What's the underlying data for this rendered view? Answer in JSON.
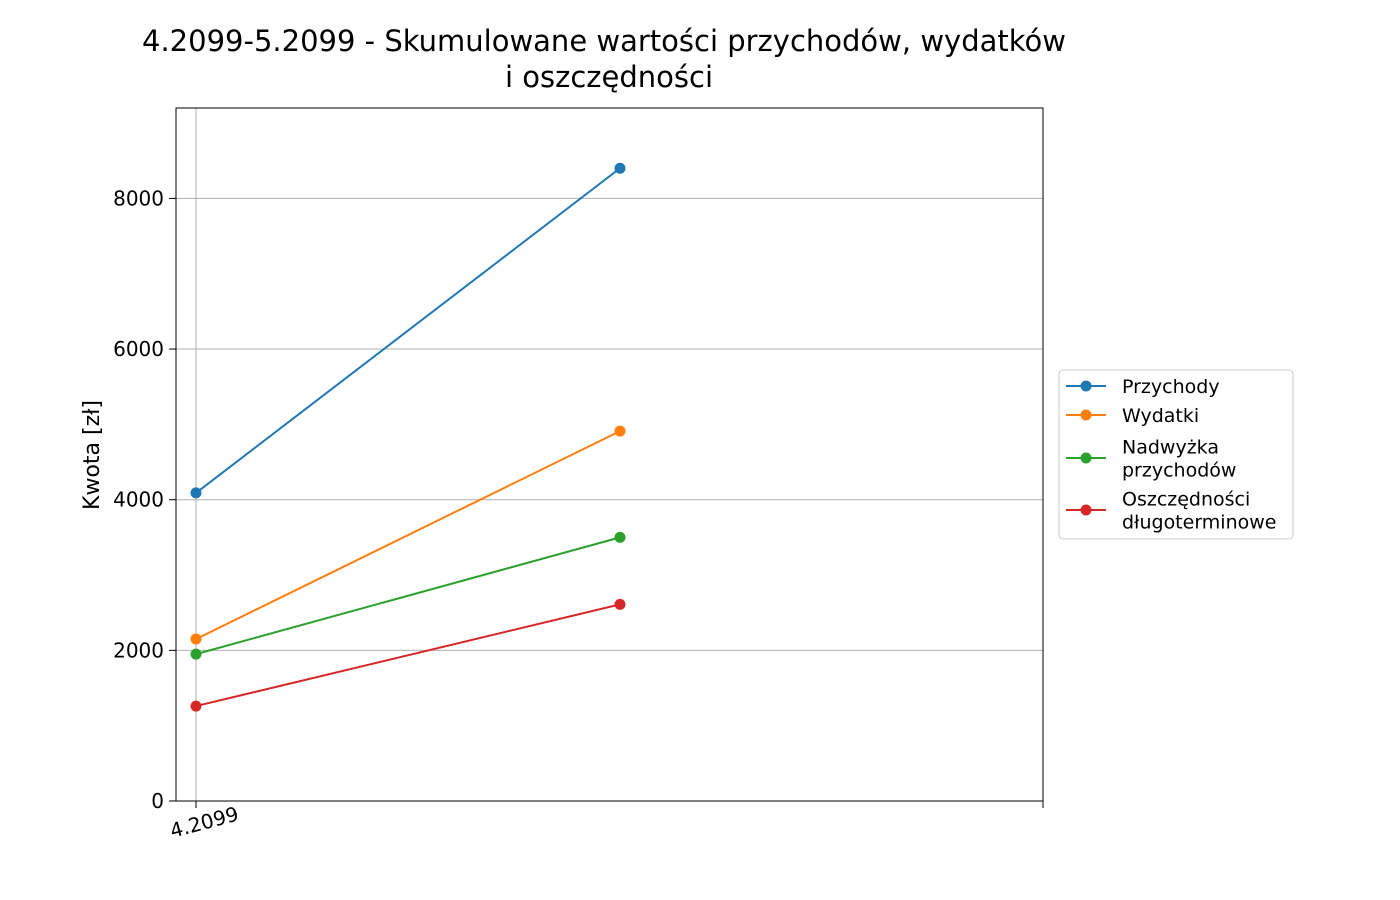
{
  "chart_data": {
    "type": "line",
    "title": "4.2099-5.2099 - Skumulowane wartości przychodów, wydatków",
    "title_line2": "i oszczędności",
    "xlabel": "",
    "ylabel": "Kwota [zł]",
    "x_tick_labels": [
      "4.2099"
    ],
    "ylim": [
      0,
      9200
    ],
    "y_ticks": [
      0,
      2000,
      4000,
      6000,
      8000
    ],
    "grid": true,
    "legend_position": "right",
    "series": [
      {
        "name": "Przychody",
        "color": "#1f77b4",
        "values": [
          4090,
          8400
        ]
      },
      {
        "name": "Wydatki",
        "color": "#ff7f0e",
        "values": [
          2150,
          4910
        ]
      },
      {
        "name": "Nadwyżka\nprzychodów",
        "color": "#2ca02c",
        "values": [
          1950,
          3500
        ]
      },
      {
        "name": "Oszczędności\ndługoterminowe",
        "color": "#d62728",
        "values": [
          1260,
          2610
        ]
      }
    ]
  }
}
